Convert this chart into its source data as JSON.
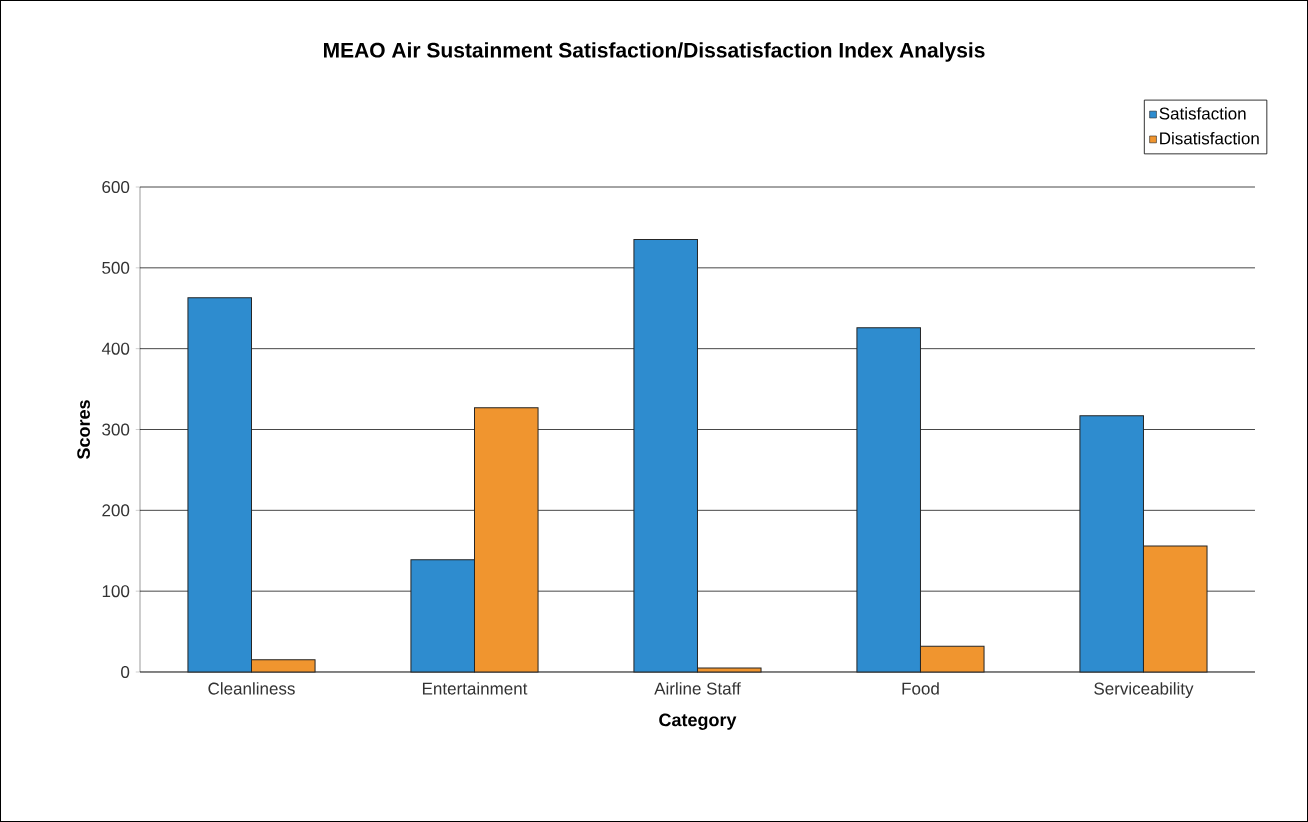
{
  "chart_data": {
    "type": "bar",
    "title": "MEAO Air Sustainment Satisfaction/Dissatisfaction Index Analysis",
    "xlabel": "Category",
    "ylabel": "Scores",
    "categories": [
      "Cleanliness",
      "Entertainment",
      "Airline Staff",
      "Food",
      "Serviceability"
    ],
    "series": [
      {
        "name": "Satisfaction",
        "color": "#2e8ccf",
        "values": [
          463,
          139,
          535,
          426,
          317
        ]
      },
      {
        "name": "Disatisfaction",
        "color": "#f0952f",
        "values": [
          15,
          327,
          5,
          32,
          156
        ]
      }
    ],
    "ylim": [
      0,
      600
    ],
    "yticks": [
      0,
      100,
      200,
      300,
      400,
      500,
      600
    ],
    "grid": "y",
    "legend": "top right"
  }
}
